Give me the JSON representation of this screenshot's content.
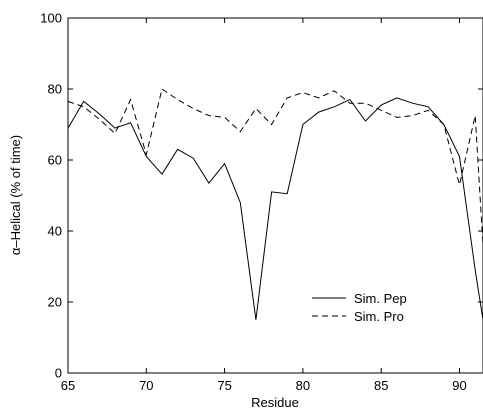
{
  "chart_data": {
    "type": "line",
    "xlabel": "Residue",
    "ylabel": "α–Helical (% of time)",
    "xlim": [
      65,
      91.5
    ],
    "ylim": [
      0,
      100
    ],
    "xticks": [
      "65",
      "70",
      "75",
      "80",
      "85",
      "90"
    ],
    "yticks": [
      "0",
      "20",
      "40",
      "60",
      "80",
      "100"
    ],
    "grid": false,
    "legend_position": "lower-right",
    "series": [
      {
        "name": "Sim. Pep",
        "style": "solid",
        "color": "#000000",
        "x": [
          65,
          66,
          67,
          68,
          69,
          70,
          71,
          72,
          73,
          74,
          75,
          76,
          77,
          78,
          79,
          80,
          81,
          82,
          83,
          84,
          85,
          86,
          87,
          88,
          89,
          90,
          91,
          91.5
        ],
        "y": [
          69,
          76.5,
          73,
          69,
          70.5,
          61,
          56,
          63,
          60.5,
          53.5,
          59,
          48,
          15,
          51,
          50.5,
          70,
          73.5,
          75,
          77,
          71,
          75.5,
          77.5,
          76,
          75,
          70,
          61,
          29,
          15
        ]
      },
      {
        "name": "Sim. Pro",
        "style": "dashed",
        "color": "#000000",
        "x": [
          65,
          66,
          67,
          68,
          69,
          70,
          71,
          72,
          73,
          74,
          75,
          76,
          77,
          78,
          79,
          80,
          81,
          82,
          83,
          84,
          85,
          86,
          87,
          88,
          89,
          90,
          91,
          91.5
        ],
        "y": [
          76.5,
          75,
          71.5,
          67.5,
          77,
          61.5,
          80,
          77,
          74.5,
          72.5,
          72,
          68,
          74.5,
          70,
          77.5,
          79,
          77.5,
          79.5,
          76,
          76,
          74,
          72,
          72.5,
          74,
          70,
          53,
          72.5,
          36
        ]
      }
    ]
  }
}
